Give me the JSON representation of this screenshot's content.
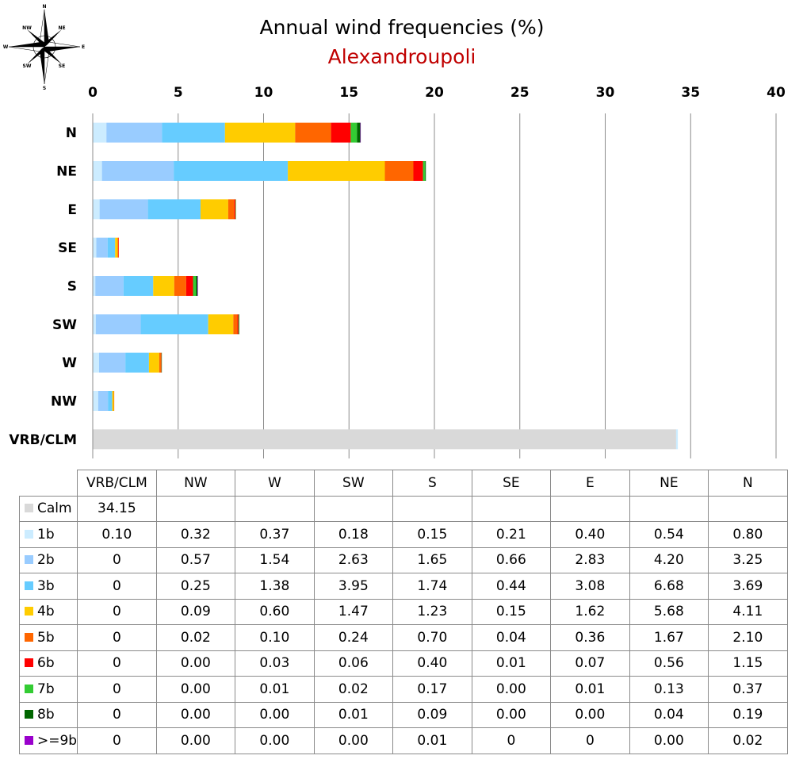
{
  "title": "Annual wind frequencies (%)",
  "subtitle": "Alexandroupoli",
  "compass_labels": [
    "N",
    "NE",
    "E",
    "SE",
    "S",
    "SW",
    "W",
    "NW"
  ],
  "chart_data": {
    "type": "bar",
    "orientation": "horizontal",
    "stacked": true,
    "title": "Annual wind frequencies (%)",
    "subtitle": "Alexandroupoli",
    "x_ticks": [
      0,
      5,
      10,
      15,
      20,
      25,
      30,
      35,
      40
    ],
    "xlim": [
      0,
      40
    ],
    "grid": "vertical",
    "categories_top_to_bottom": [
      "N",
      "NE",
      "E",
      "SE",
      "S",
      "SW",
      "W",
      "NW",
      "VRB/CLM"
    ],
    "series": [
      {
        "name": "Calm",
        "color": "#d9d9d9",
        "values": {
          "VRB/CLM": 34.15
        }
      },
      {
        "name": "1b",
        "color": "#ccecff",
        "values": {
          "VRB/CLM": 0.1,
          "NW": 0.32,
          "W": 0.37,
          "SW": 0.18,
          "S": 0.15,
          "SE": 0.21,
          "E": 0.4,
          "NE": 0.54,
          "N": 0.8
        }
      },
      {
        "name": "2b",
        "color": "#99ccff",
        "values": {
          "VRB/CLM": 0,
          "NW": 0.57,
          "W": 1.54,
          "SW": 2.63,
          "S": 1.65,
          "SE": 0.66,
          "E": 2.83,
          "NE": 4.2,
          "N": 3.25
        }
      },
      {
        "name": "3b",
        "color": "#66ccff",
        "values": {
          "VRB/CLM": 0,
          "NW": 0.25,
          "W": 1.38,
          "SW": 3.95,
          "S": 1.74,
          "SE": 0.44,
          "E": 3.08,
          "NE": 6.68,
          "N": 3.69
        }
      },
      {
        "name": "4b",
        "color": "#ffcc00",
        "values": {
          "VRB/CLM": 0,
          "NW": 0.09,
          "W": 0.6,
          "SW": 1.47,
          "S": 1.23,
          "SE": 0.15,
          "E": 1.62,
          "NE": 5.68,
          "N": 4.11
        }
      },
      {
        "name": "5b",
        "color": "#ff6600",
        "values": {
          "VRB/CLM": 0,
          "NW": 0.02,
          "W": 0.1,
          "SW": 0.24,
          "S": 0.7,
          "SE": 0.04,
          "E": 0.36,
          "NE": 1.67,
          "N": 2.1
        }
      },
      {
        "name": "6b",
        "color": "#ff0000",
        "values": {
          "VRB/CLM": 0,
          "NW": 0.0,
          "W": 0.03,
          "SW": 0.06,
          "S": 0.4,
          "SE": 0.01,
          "E": 0.07,
          "NE": 0.56,
          "N": 1.15
        }
      },
      {
        "name": "7b",
        "color": "#33cc33",
        "values": {
          "VRB/CLM": 0,
          "NW": 0.0,
          "W": 0.01,
          "SW": 0.02,
          "S": 0.17,
          "SE": 0.0,
          "E": 0.01,
          "NE": 0.13,
          "N": 0.37
        }
      },
      {
        "name": "8b",
        "color": "#006600",
        "values": {
          "VRB/CLM": 0,
          "NW": 0.0,
          "W": 0.0,
          "SW": 0.01,
          "S": 0.09,
          "SE": 0.0,
          "E": 0.0,
          "NE": 0.04,
          "N": 0.19
        }
      },
      {
        "name": ">=9b",
        "color": "#9900cc",
        "values": {
          "VRB/CLM": 0,
          "NW": 0.0,
          "W": 0.0,
          "SW": 0.0,
          "S": 0.01,
          "SE": 0,
          "E": 0,
          "NE": 0.0,
          "N": 0.02
        }
      }
    ]
  },
  "table": {
    "columns": [
      "VRB/CLM",
      "NW",
      "W",
      "SW",
      "S",
      "SE",
      "E",
      "NE",
      "N"
    ],
    "rows": [
      {
        "label": "Calm",
        "color": "#d9d9d9",
        "cells": [
          "34.15",
          "",
          "",
          "",
          "",
          "",
          "",
          "",
          ""
        ]
      },
      {
        "label": "1b",
        "color": "#ccecff",
        "cells": [
          "0.10",
          "0.32",
          "0.37",
          "0.18",
          "0.15",
          "0.21",
          "0.40",
          "0.54",
          "0.80"
        ]
      },
      {
        "label": "2b",
        "color": "#99ccff",
        "cells": [
          "0",
          "0.57",
          "1.54",
          "2.63",
          "1.65",
          "0.66",
          "2.83",
          "4.20",
          "3.25"
        ]
      },
      {
        "label": "3b",
        "color": "#66ccff",
        "cells": [
          "0",
          "0.25",
          "1.38",
          "3.95",
          "1.74",
          "0.44",
          "3.08",
          "6.68",
          "3.69"
        ]
      },
      {
        "label": "4b",
        "color": "#ffcc00",
        "cells": [
          "0",
          "0.09",
          "0.60",
          "1.47",
          "1.23",
          "0.15",
          "1.62",
          "5.68",
          "4.11"
        ]
      },
      {
        "label": "5b",
        "color": "#ff6600",
        "cells": [
          "0",
          "0.02",
          "0.10",
          "0.24",
          "0.70",
          "0.04",
          "0.36",
          "1.67",
          "2.10"
        ]
      },
      {
        "label": "6b",
        "color": "#ff0000",
        "cells": [
          "0",
          "0.00",
          "0.03",
          "0.06",
          "0.40",
          "0.01",
          "0.07",
          "0.56",
          "1.15"
        ]
      },
      {
        "label": "7b",
        "color": "#33cc33",
        "cells": [
          "0",
          "0.00",
          "0.01",
          "0.02",
          "0.17",
          "0.00",
          "0.01",
          "0.13",
          "0.37"
        ]
      },
      {
        "label": "8b",
        "color": "#006600",
        "cells": [
          "0",
          "0.00",
          "0.00",
          "0.01",
          "0.09",
          "0.00",
          "0.00",
          "0.04",
          "0.19"
        ]
      },
      {
        "label": ">=9b",
        "color": "#9900cc",
        "cells": [
          "0",
          "0.00",
          "0.00",
          "0.00",
          "0.01",
          "0",
          "0",
          "0.00",
          "0.02"
        ]
      }
    ]
  }
}
